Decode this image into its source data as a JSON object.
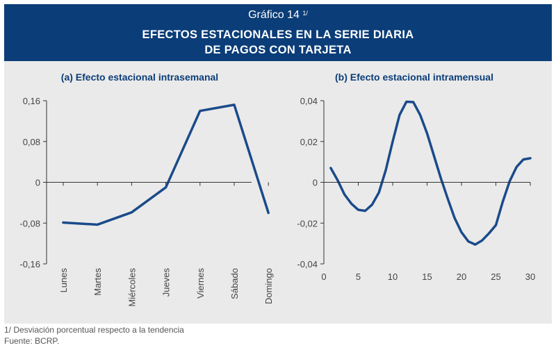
{
  "header": {
    "graph_number": "Gráfico 14",
    "note_ref": "1/",
    "title_line1": "EFECTOS ESTACIONALES EN LA SERIE DIARIA",
    "title_line2": "DE PAGOS CON TARJETA"
  },
  "footer": {
    "note": "1/ Desviación porcentual respecto a la tendencia",
    "source": "Fuente: BCRP."
  },
  "colors": {
    "header_bg": "#0b3d78",
    "panel_bg": "#eaeaea",
    "line": "#1a4a8a",
    "subtitle": "#0b3d78"
  },
  "chart_data": [
    {
      "type": "line",
      "title": "(a) Efecto estacional intrasemanal",
      "categories": [
        "Lunes",
        "Martes",
        "Miércoles",
        "Jueves",
        "Viernes",
        "Sábado",
        "Domingo"
      ],
      "values": [
        -0.079,
        -0.083,
        -0.059,
        -0.01,
        0.14,
        0.152,
        -0.06
      ],
      "ylim": [
        -0.16,
        0.16
      ],
      "yticks": [
        "0,16",
        "0,08",
        "0",
        "-0,08",
        "-0,16"
      ],
      "grid": false
    },
    {
      "type": "line",
      "title": "(b) Efecto estacional intramensual",
      "x": [
        1,
        2,
        3,
        4,
        5,
        6,
        7,
        8,
        9,
        10,
        11,
        12,
        13,
        14,
        15,
        16,
        17,
        18,
        19,
        20,
        21,
        22,
        23,
        24,
        25,
        26,
        27,
        28,
        29,
        30
      ],
      "values": [
        0.007,
        0.001,
        -0.006,
        -0.0105,
        -0.0135,
        -0.014,
        -0.011,
        -0.005,
        0.006,
        0.02,
        0.033,
        0.0395,
        0.0393,
        0.033,
        0.024,
        0.013,
        0.002,
        -0.008,
        -0.0175,
        -0.0245,
        -0.029,
        -0.0305,
        -0.0285,
        -0.025,
        -0.021,
        -0.0095,
        0.0005,
        0.0075,
        0.0112,
        0.0118
      ],
      "xlim": [
        0,
        30
      ],
      "ylim": [
        -0.04,
        0.04
      ],
      "xticks": [
        "0",
        "5",
        "10",
        "15",
        "20",
        "25",
        "30"
      ],
      "yticks": [
        "0,04",
        "0,02",
        "0",
        "-0,02",
        "-0,04"
      ],
      "grid": false
    }
  ]
}
